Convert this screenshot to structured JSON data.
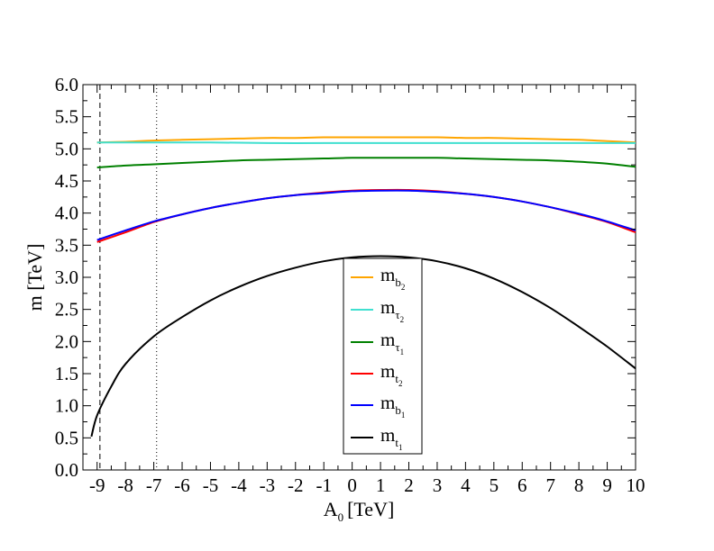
{
  "chart_data": {
    "type": "line",
    "xlabel": "A",
    "xlabel_sub": "0",
    "xlabel_unit": "[TeV]",
    "ylabel": "m [TeV]",
    "xlim": [
      -9.5,
      10
    ],
    "ylim": [
      0,
      6
    ],
    "x_ticks": [
      -9,
      -8,
      -7,
      -6,
      -5,
      -4,
      -3,
      -2,
      -1,
      0,
      1,
      2,
      3,
      4,
      5,
      6,
      7,
      8,
      9,
      10
    ],
    "y_ticks": [
      0.0,
      0.5,
      1.0,
      1.5,
      2.0,
      2.5,
      3.0,
      3.5,
      4.0,
      4.5,
      5.0,
      5.5,
      6.0
    ],
    "y_tick_labels": [
      "0.0",
      "0.5",
      "1.0",
      "1.5",
      "2.0",
      "2.5",
      "3.0",
      "3.5",
      "4.0",
      "4.5",
      "5.0",
      "5.5",
      "6.0"
    ],
    "vertical_lines": [
      {
        "x": -8.9,
        "style": "dashed"
      },
      {
        "x": -6.9,
        "style": "dotted"
      }
    ],
    "legend_position": "center",
    "grid": false,
    "series": [
      {
        "name": "m",
        "sub": "b",
        "subsub": "2",
        "color": "#ffa500",
        "x": [
          -9.0,
          -8.0,
          -7.0,
          -6.0,
          -5.0,
          -4.0,
          -3.0,
          -2.0,
          -1.0,
          0.0,
          1.0,
          2.0,
          3.0,
          4.0,
          5.0,
          6.0,
          7.0,
          8.0,
          9.0,
          10.0
        ],
        "y": [
          5.1,
          5.11,
          5.13,
          5.14,
          5.15,
          5.16,
          5.17,
          5.17,
          5.18,
          5.18,
          5.18,
          5.18,
          5.18,
          5.17,
          5.17,
          5.16,
          5.15,
          5.14,
          5.12,
          5.1
        ]
      },
      {
        "name": "m",
        "sub": "τ",
        "subsub": "2",
        "color": "#40e0d0",
        "x": [
          -9.0,
          -7.0,
          -5.0,
          -3.0,
          -1.0,
          1.0,
          3.0,
          5.0,
          7.0,
          9.0,
          10.0
        ],
        "y": [
          5.1,
          5.1,
          5.1,
          5.09,
          5.09,
          5.09,
          5.09,
          5.09,
          5.09,
          5.09,
          5.09
        ]
      },
      {
        "name": "m",
        "sub": "τ",
        "subsub": "1",
        "color": "#008000",
        "x": [
          -9.0,
          -8.0,
          -7.0,
          -6.0,
          -5.0,
          -4.0,
          -3.0,
          -2.0,
          -1.0,
          0.0,
          1.0,
          2.0,
          3.0,
          4.0,
          5.0,
          6.0,
          7.0,
          8.0,
          9.0,
          10.0
        ],
        "y": [
          4.71,
          4.74,
          4.76,
          4.78,
          4.8,
          4.82,
          4.83,
          4.84,
          4.85,
          4.86,
          4.86,
          4.86,
          4.86,
          4.85,
          4.84,
          4.83,
          4.82,
          4.8,
          4.77,
          4.72
        ]
      },
      {
        "name": "m",
        "sub": "t",
        "subsub": "2",
        "color": "#ff0000",
        "x": [
          -9.0,
          -8.0,
          -7.0,
          -6.0,
          -5.0,
          -4.0,
          -3.0,
          -2.0,
          -1.0,
          0.0,
          1.0,
          2.0,
          3.0,
          4.0,
          5.0,
          6.0,
          7.0,
          8.0,
          9.0,
          10.0
        ],
        "y": [
          3.55,
          3.7,
          3.86,
          3.98,
          4.08,
          4.16,
          4.23,
          4.28,
          4.32,
          4.35,
          4.36,
          4.36,
          4.34,
          4.3,
          4.25,
          4.18,
          4.09,
          3.98,
          3.86,
          3.7
        ]
      },
      {
        "name": "m",
        "sub": "b",
        "subsub": "1",
        "color": "#0000ff",
        "x": [
          -9.0,
          -8.0,
          -7.0,
          -6.0,
          -5.0,
          -4.0,
          -3.0,
          -2.0,
          -1.0,
          0.0,
          1.0,
          2.0,
          3.0,
          4.0,
          5.0,
          6.0,
          7.0,
          8.0,
          9.0,
          10.0
        ],
        "y": [
          3.58,
          3.73,
          3.87,
          3.98,
          4.08,
          4.16,
          4.23,
          4.28,
          4.31,
          4.34,
          4.35,
          4.35,
          4.33,
          4.3,
          4.25,
          4.18,
          4.09,
          3.99,
          3.87,
          3.73
        ]
      },
      {
        "name": "m",
        "sub": "t",
        "subsub": "1",
        "color": "#000000",
        "x": [
          -9.2,
          -9.0,
          -8.5,
          -8.0,
          -7.0,
          -6.0,
          -5.0,
          -4.0,
          -3.0,
          -2.0,
          -1.0,
          0.0,
          1.0,
          2.0,
          3.0,
          4.0,
          5.0,
          6.0,
          7.0,
          8.0,
          9.0,
          10.0
        ],
        "y": [
          0.52,
          0.85,
          1.3,
          1.65,
          2.08,
          2.38,
          2.64,
          2.85,
          3.02,
          3.15,
          3.25,
          3.31,
          3.33,
          3.31,
          3.25,
          3.14,
          2.98,
          2.77,
          2.52,
          2.23,
          1.92,
          1.58
        ]
      }
    ]
  }
}
